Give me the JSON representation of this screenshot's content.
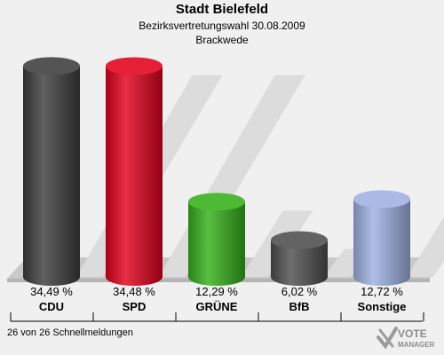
{
  "chart_data": {
    "type": "bar",
    "title": "Stadt Bielefeld",
    "subtitle": "Bezirksvertretungswahl 30.08.2009",
    "subtitle2": "Brackwede",
    "categories": [
      "CDU",
      "SPD",
      "GRÜNE",
      "BfB",
      "Sonstige"
    ],
    "values": [
      34.49,
      34.48,
      12.29,
      6.02,
      12.72
    ],
    "value_labels": [
      "34,49 %",
      "34,48 %",
      "12,29 %",
      "6,02 %",
      "12,72 %"
    ],
    "colors": [
      "#3d3d3d",
      "#e0001b",
      "#35b01a",
      "#4e4e4e",
      "#9fb1e0"
    ],
    "ylim": [
      0,
      36
    ]
  },
  "footer": "26 von 26 Schnellmeldungen",
  "logo": {
    "line1": "VOTE",
    "line2": "MANAGER",
    "icon": "vote-manager-logo"
  }
}
